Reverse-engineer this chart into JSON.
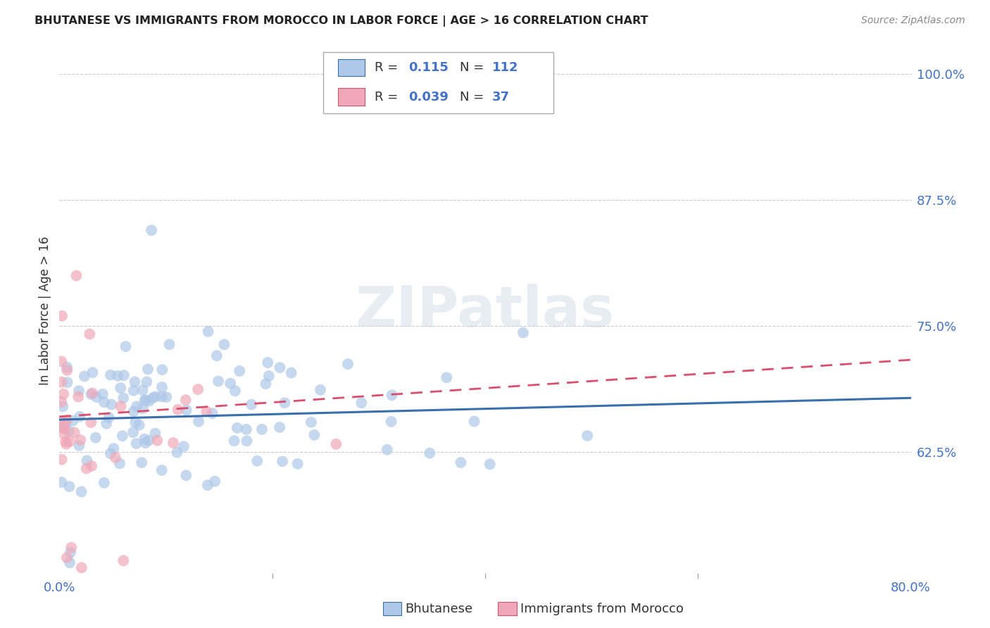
{
  "title": "BHUTANESE VS IMMIGRANTS FROM MOROCCO IN LABOR FORCE | AGE > 16 CORRELATION CHART",
  "source_text": "Source: ZipAtlas.com",
  "ylabel": "In Labor Force | Age > 16",
  "xlim": [
    0.0,
    0.8
  ],
  "ylim": [
    0.5,
    1.03
  ],
  "xticks": [
    0.0,
    0.2,
    0.4,
    0.6,
    0.8
  ],
  "xticklabels": [
    "0.0%",
    "",
    "",
    "",
    "80.0%"
  ],
  "yticks": [
    0.625,
    0.75,
    0.875,
    1.0
  ],
  "yticklabels": [
    "62.5%",
    "75.0%",
    "87.5%",
    "100.0%"
  ],
  "watermark": "ZIPatlas",
  "legend_r_blue": "0.115",
  "legend_n_blue": "112",
  "legend_r_pink": "0.039",
  "legend_n_pink": "37",
  "blue_color": "#adc8e8",
  "blue_line_color": "#3a6fad",
  "pink_color": "#f0a8b8",
  "pink_line_color": "#d94f6e",
  "grid_color": "#cccccc",
  "title_color": "#222222",
  "tick_color": "#4472c4",
  "watermark_color": "#ccd8e8",
  "watermark_alpha": 0.45
}
